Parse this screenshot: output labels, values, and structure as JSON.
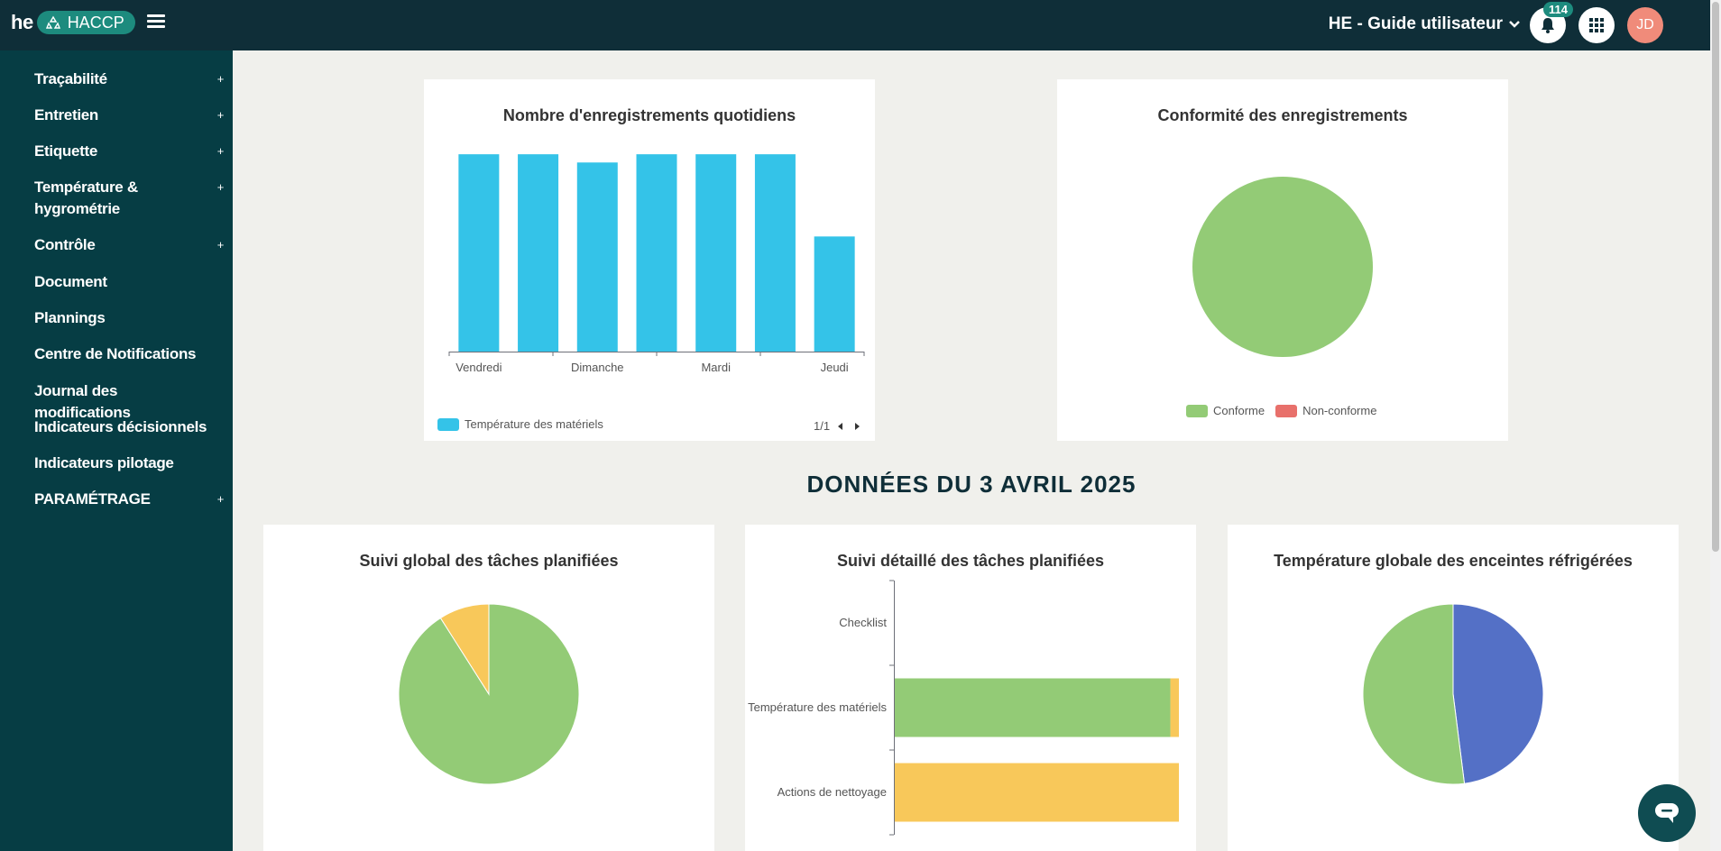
{
  "header": {
    "logo_text": "he",
    "app_name": "HACCP",
    "site_name": "HE - Guide utilisateur",
    "notification_count": "114",
    "avatar_initials": "JD"
  },
  "sidebar": {
    "items": [
      {
        "label": "Traçabilité",
        "expandable": "+"
      },
      {
        "label": "Entretien",
        "expandable": "+"
      },
      {
        "label": "Etiquette",
        "expandable": "+"
      },
      {
        "label": "Température & hygrométrie",
        "expandable": "+"
      },
      {
        "label": "Contrôle",
        "expandable": "+"
      },
      {
        "label": "Document"
      },
      {
        "label": "Plannings"
      },
      {
        "label": "Centre de Notifications"
      },
      {
        "label": "Journal des modifications"
      },
      {
        "label": "Indicateurs décisionnels"
      },
      {
        "label": "Indicateurs pilotage"
      },
      {
        "label": "PARAMÉTRAGE",
        "expandable": "+"
      }
    ]
  },
  "section_title": "DONNÉES DU 3 AVRIL 2025",
  "chart_data": [
    {
      "type": "bar",
      "title": "Nombre d'enregistrements quotidiens",
      "tick_labels": [
        "Vendredi",
        "Dimanche",
        "Mardi",
        "Jeudi"
      ],
      "values": [
        24,
        24,
        23,
        24,
        24,
        24,
        14
      ],
      "ylim": [
        0,
        25
      ],
      "series": [
        {
          "name": "Température des matériels",
          "color": "#34c3e8"
        }
      ],
      "pagination": "1/1"
    },
    {
      "type": "pie",
      "title": "Conformité des enregistrements",
      "slices": [
        {
          "label": "Conforme",
          "value": 100,
          "color": "#93cb76"
        },
        {
          "label": "Non-conforme",
          "value": 0,
          "color": "#e8706b"
        }
      ]
    },
    {
      "type": "pie",
      "title": "Suivi global des tâches planifiées",
      "slices": [
        {
          "value": 91,
          "color": "#93cb76"
        },
        {
          "value": 9,
          "color": "#f8c85a"
        }
      ]
    },
    {
      "type": "bar",
      "orientation": "horizontal",
      "title": "Suivi détaillé des tâches planifiées",
      "categories": [
        "Checklist",
        "Température des matériels",
        "Actions de nettoyage"
      ],
      "series": [
        {
          "values": [
            0,
            97,
            0
          ],
          "color": "#93cb76"
        },
        {
          "values": [
            0,
            3,
            100
          ],
          "color": "#f8c85a"
        }
      ],
      "xlim": [
        0,
        100
      ]
    },
    {
      "type": "pie",
      "title": "Température globale des enceintes réfrigérées",
      "slices": [
        {
          "value": 48,
          "color": "#5470c6"
        },
        {
          "value": 52,
          "color": "#93cb76"
        }
      ]
    }
  ]
}
